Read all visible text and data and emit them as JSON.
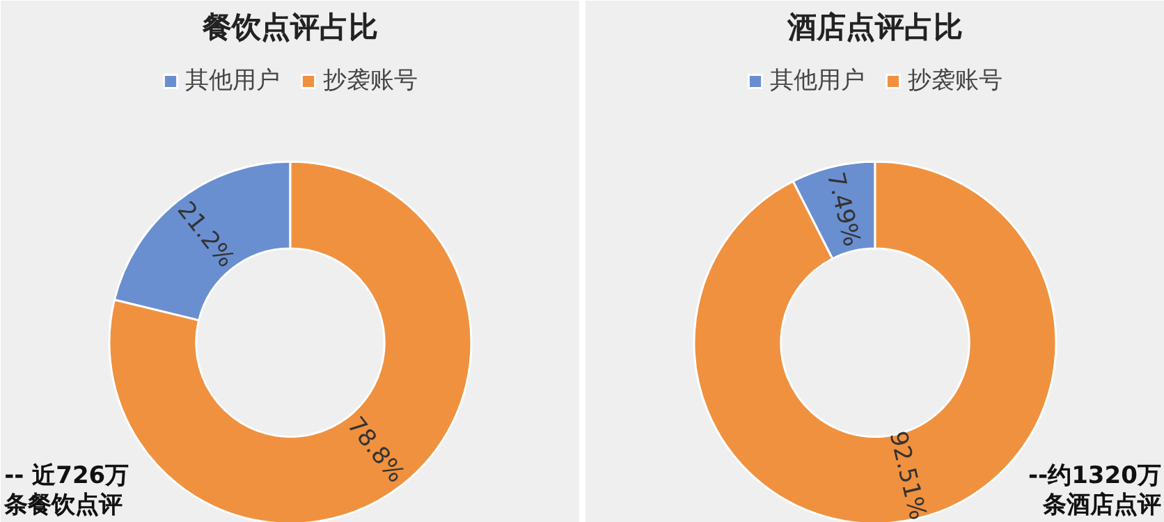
{
  "chart_data": [
    {
      "type": "donut",
      "title": "餐饮点评占比",
      "categories": [
        "其他用户",
        "抄袭账号"
      ],
      "values": [
        21.2,
        78.8
      ],
      "colors": [
        "#6a8fd0",
        "#f0913f"
      ],
      "value_labels": [
        "21.2%",
        "78.8%"
      ],
      "legend": "top",
      "annotations": [
        "-- 近726万",
        "条餐饮点评"
      ]
    },
    {
      "type": "donut",
      "title": "酒店点评占比",
      "categories": [
        "其他用户",
        "抄袭账号"
      ],
      "values": [
        7.49,
        92.51
      ],
      "colors": [
        "#6a8fd0",
        "#f0913f"
      ],
      "value_labels": [
        "7.49%",
        "92.51%"
      ],
      "legend": "top",
      "annotations": [
        "--约1320万",
        "条酒店点评"
      ]
    }
  ]
}
